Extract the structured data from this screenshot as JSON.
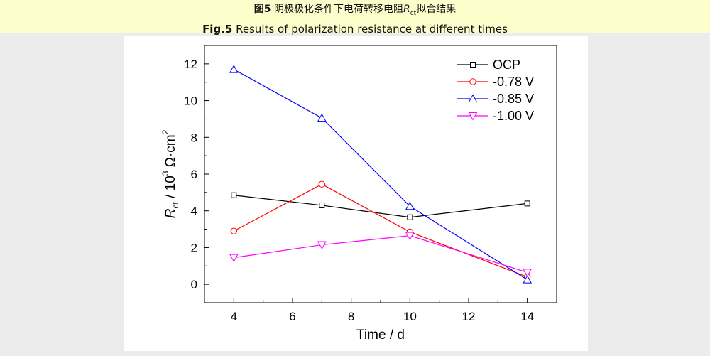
{
  "caption": {
    "zh_label": "图5",
    "zh_text_a": " 阴极极化条件下电荷转移电阻",
    "zh_R": "R",
    "zh_sub": "ct",
    "zh_text_b": "拟合结果",
    "en_label": "Fig.5",
    "en_text": " Results of polarization resistance at different times"
  },
  "chart_data": {
    "type": "line",
    "title": "",
    "xlabel": "Time / d",
    "ylabel": {
      "R": "R",
      "sub": "ct",
      "mid": " / 10",
      "exp": "3",
      "unit": " Ω·cm",
      "exp2": "2"
    },
    "xlim": [
      3,
      15
    ],
    "ylim": [
      -1,
      13
    ],
    "xticks": [
      4,
      6,
      8,
      10,
      12,
      14
    ],
    "yticks": [
      0,
      2,
      4,
      6,
      8,
      10,
      12
    ],
    "x": [
      4,
      7,
      10,
      14
    ],
    "legend_position": "top-right",
    "series": [
      {
        "name": "OCP",
        "color": "#000000",
        "marker": "square",
        "values": [
          4.85,
          4.3,
          3.65,
          4.4
        ]
      },
      {
        "name": "-0.78 V",
        "color": "#ff0000",
        "marker": "circle",
        "values": [
          2.9,
          5.45,
          2.85,
          0.4
        ]
      },
      {
        "name": "-0.85 V",
        "color": "#0000ff",
        "marker": "triangle-up",
        "values": [
          11.7,
          9.05,
          4.25,
          0.25
        ]
      },
      {
        "name": "-1.00 V",
        "color": "#ff00ff",
        "marker": "triangle-down",
        "values": [
          1.45,
          2.15,
          2.65,
          0.65
        ]
      }
    ]
  }
}
